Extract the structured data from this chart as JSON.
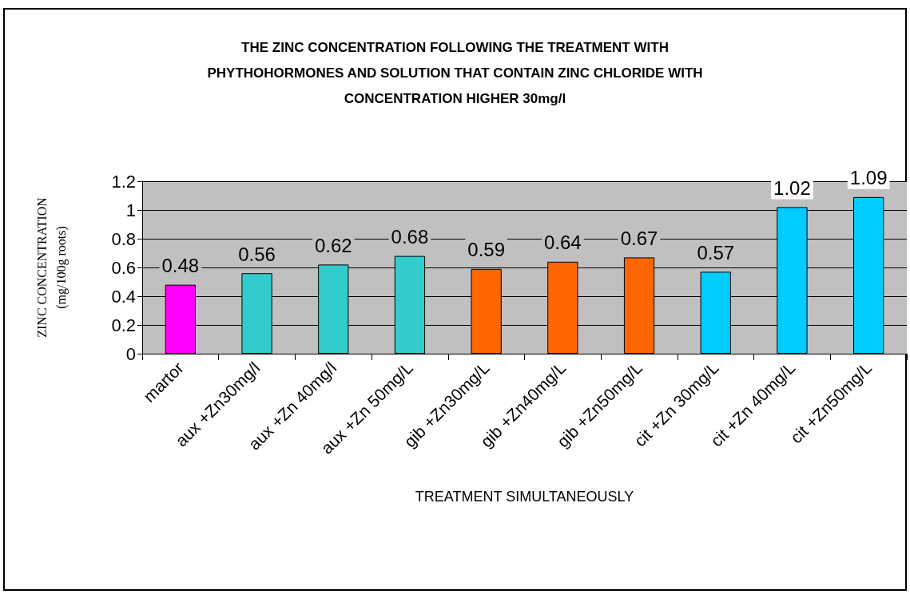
{
  "chart_data": {
    "type": "bar",
    "title": "THE ZINC CONCENTRATION FOLLOWING THE TREATMENT WITH\nPHYTHOHORMONES AND SOLUTION THAT CONTAIN ZINC CHLORIDE WITH\nCONCENTRATION HIGHER 30mg/l",
    "xlabel": "TREATMENT SIMULTANEOUSLY",
    "ylabel": "ZINC CONCENTRATION\n(mg/100g roots)",
    "categories": [
      "martor",
      "aux +Zn30mg/l",
      "aux +Zn 40mg/l",
      "aux +Zn 50mg/L",
      "gib +Zn30mg/L",
      "gib +Zn40mg/L",
      "gib +Zn50mg/L",
      "cit +Zn 30mg/L",
      "cit +Zn 40mg/L",
      "cit +Zn50mg/L"
    ],
    "values": [
      0.48,
      0.56,
      0.62,
      0.68,
      0.59,
      0.64,
      0.67,
      0.57,
      1.02,
      1.09
    ],
    "colors": [
      "#ff00ff",
      "#33cccc",
      "#33cccc",
      "#33cccc",
      "#ff6600",
      "#ff6600",
      "#ff6600",
      "#00ccff",
      "#00ccff",
      "#00ccff"
    ],
    "ylim": [
      0,
      1.2
    ],
    "yticks": [
      0,
      0.2,
      0.4,
      0.6,
      0.8,
      1,
      1.2
    ],
    "grid": "y",
    "data_labels": true
  }
}
